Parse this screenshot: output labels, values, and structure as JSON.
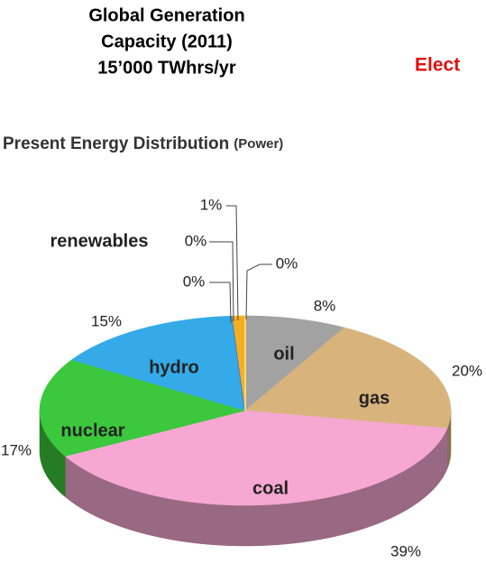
{
  "chart_data": {
    "type": "pie",
    "title": [
      "Global Generation",
      "Capacity (2011)",
      "15’000 TWhrs/yr"
    ],
    "annotation": "Elect",
    "subtitle": "Present Energy Distribution",
    "subtitle_note": "(Power)",
    "categories": [
      "oil",
      "gas",
      "coal",
      "nuclear",
      "hydro",
      null,
      "renewables",
      null,
      null
    ],
    "values": [
      8,
      20,
      39,
      17,
      15,
      0,
      0,
      1,
      0
    ],
    "value_labels": [
      "8%",
      "20%",
      "39%",
      "17%",
      "15%",
      "0%",
      "0%",
      "1%",
      "0%"
    ],
    "colors": [
      "#a2a2a2",
      "#d8b47c",
      "#f7a8d2",
      "#3cc83c",
      "#35aae8",
      "#1a2a8a",
      "#4f78d0",
      "#f3b022",
      "#ffd77a"
    ]
  }
}
